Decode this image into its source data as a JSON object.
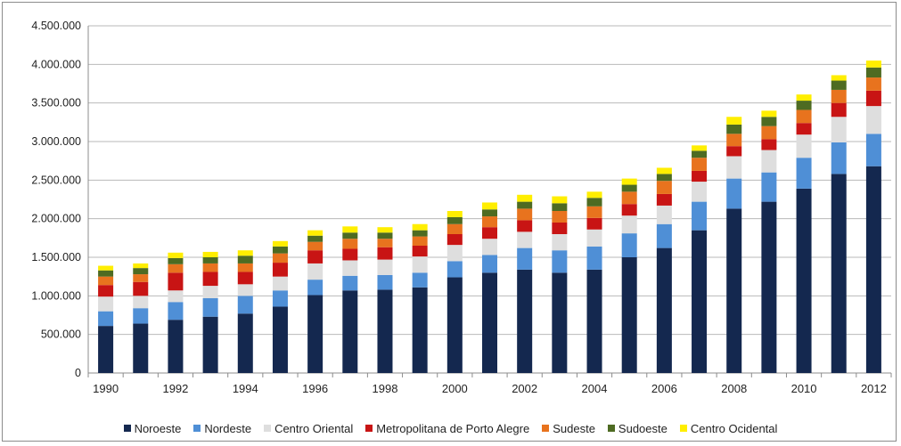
{
  "chart_data": {
    "type": "bar",
    "stacked": true,
    "title": "",
    "xlabel": "",
    "ylabel": "",
    "ylim": [
      0,
      4500000
    ],
    "yticks": [
      0,
      500000,
      1000000,
      1500000,
      2000000,
      2500000,
      3000000,
      3500000,
      4000000,
      4500000
    ],
    "ytick_labels": [
      "0",
      "500.000",
      "1.000.000",
      "1.500.000",
      "2.000.000",
      "2.500.000",
      "3.000.000",
      "3.500.000",
      "4.000.000",
      "4.500.000"
    ],
    "grid": "horizontal",
    "legend_position": "bottom",
    "categories": [
      "1990",
      "1991",
      "1992",
      "1993",
      "1994",
      "1995",
      "1996",
      "1997",
      "1998",
      "1999",
      "2000",
      "2001",
      "2002",
      "2003",
      "2004",
      "2005",
      "2006",
      "2007",
      "2008",
      "2009",
      "2010",
      "2011",
      "2012"
    ],
    "xtick_labels": [
      "1990",
      "",
      "1992",
      "",
      "1994",
      "",
      "1996",
      "",
      "1998",
      "",
      "2000",
      "",
      "2002",
      "",
      "2004",
      "",
      "2006",
      "",
      "2008",
      "",
      "2010",
      "",
      "2012"
    ],
    "series": [
      {
        "name": "Noroeste",
        "color": "#14284f",
        "values": [
          610000,
          640000,
          690000,
          730000,
          770000,
          860000,
          1010000,
          1070000,
          1080000,
          1110000,
          1240000,
          1300000,
          1340000,
          1300000,
          1340000,
          1500000,
          1620000,
          1850000,
          2130000,
          2220000,
          2390000,
          2580000,
          2680000
        ]
      },
      {
        "name": "Nordeste",
        "color": "#4f8fd6",
        "values": [
          190000,
          200000,
          230000,
          240000,
          230000,
          210000,
          200000,
          190000,
          190000,
          190000,
          210000,
          230000,
          280000,
          290000,
          300000,
          310000,
          310000,
          370000,
          390000,
          380000,
          400000,
          410000,
          420000
        ]
      },
      {
        "name": "Centro Oriental",
        "color": "#dedede",
        "values": [
          190000,
          160000,
          150000,
          160000,
          150000,
          180000,
          210000,
          200000,
          200000,
          210000,
          210000,
          210000,
          210000,
          210000,
          220000,
          230000,
          240000,
          260000,
          290000,
          290000,
          300000,
          330000,
          360000
        ]
      },
      {
        "name": "Metropolitana de Porto Alegre",
        "color": "#c81414",
        "values": [
          150000,
          180000,
          230000,
          180000,
          160000,
          180000,
          170000,
          150000,
          160000,
          140000,
          140000,
          150000,
          150000,
          150000,
          150000,
          150000,
          150000,
          140000,
          130000,
          140000,
          150000,
          180000,
          200000
        ]
      },
      {
        "name": "Sudeste",
        "color": "#e8731e",
        "values": [
          110000,
          100000,
          110000,
          110000,
          110000,
          120000,
          110000,
          130000,
          110000,
          120000,
          130000,
          140000,
          150000,
          150000,
          150000,
          160000,
          170000,
          170000,
          160000,
          170000,
          170000,
          170000,
          170000
        ]
      },
      {
        "name": "Sudoeste",
        "color": "#4e6b22",
        "values": [
          80000,
          80000,
          80000,
          80000,
          100000,
          90000,
          80000,
          80000,
          80000,
          80000,
          90000,
          90000,
          90000,
          100000,
          110000,
          90000,
          90000,
          90000,
          120000,
          120000,
          120000,
          120000,
          130000
        ]
      },
      {
        "name": "Centro Ocidental",
        "color": "#ffee00",
        "values": [
          60000,
          60000,
          70000,
          70000,
          70000,
          70000,
          70000,
          80000,
          70000,
          80000,
          80000,
          90000,
          90000,
          90000,
          80000,
          80000,
          80000,
          70000,
          100000,
          80000,
          80000,
          70000,
          90000
        ]
      }
    ]
  }
}
